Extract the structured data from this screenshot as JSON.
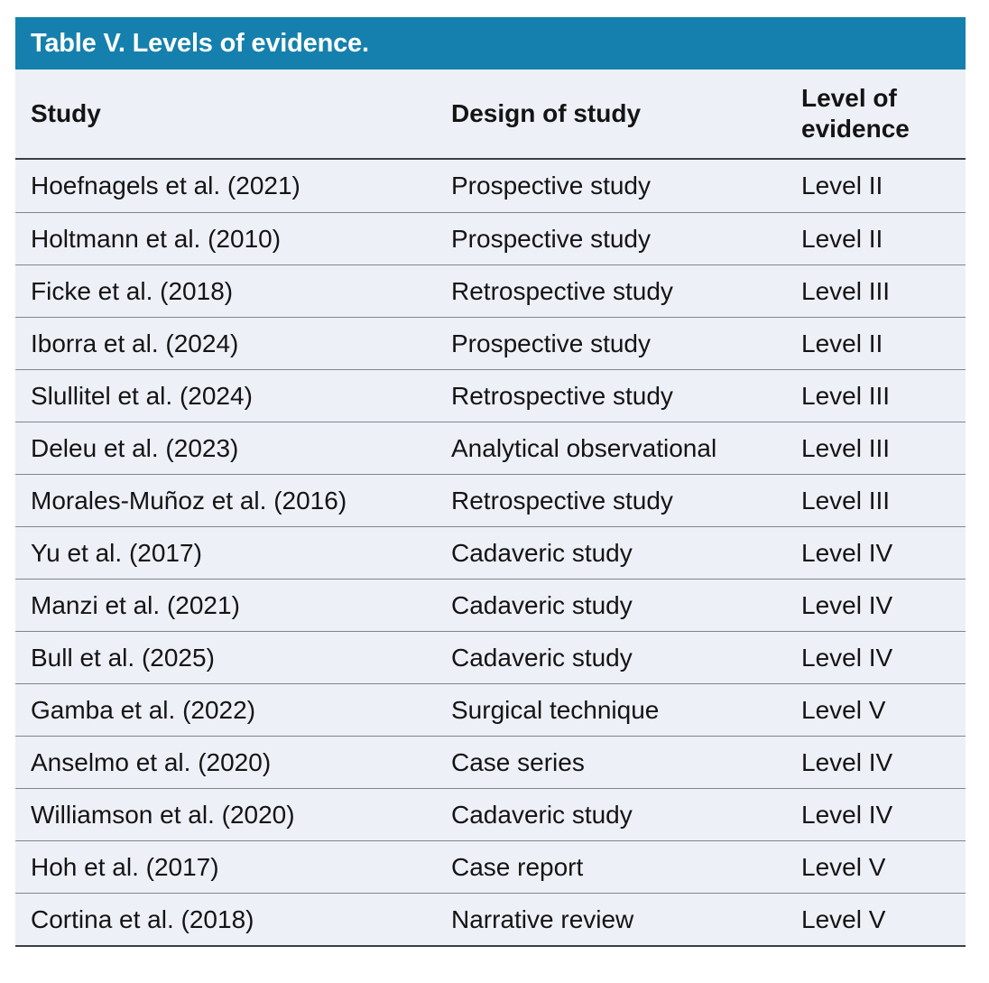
{
  "table": {
    "title": "Table V. Levels of evidence.",
    "columns": {
      "study": "Study",
      "design": "Design of study",
      "level": "Level of evidence"
    },
    "rows": [
      [
        "Hoefnagels et al. (2021)",
        "Prospective study",
        "Level II"
      ],
      [
        "Holtmann et al. (2010)",
        "Prospective study",
        "Level II"
      ],
      [
        "Ficke et al. (2018)",
        "Retrospective study",
        "Level III"
      ],
      [
        "Iborra et al. (2024)",
        "Prospective study",
        "Level II"
      ],
      [
        "Slullitel et al. (2024)",
        "Retrospective study",
        "Level III"
      ],
      [
        "Deleu et al. (2023)",
        "Analytical observational",
        "Level III"
      ],
      [
        "Morales-Muñoz et al. (2016)",
        "Retrospective study",
        "Level III"
      ],
      [
        "Yu et al. (2017)",
        "Cadaveric study",
        "Level IV"
      ],
      [
        "Manzi et al. (2021)",
        "Cadaveric study",
        "Level IV"
      ],
      [
        "Bull et al. (2025)",
        "Cadaveric study",
        "Level IV"
      ],
      [
        "Gamba et al. (2022)",
        "Surgical technique",
        "Level V"
      ],
      [
        "Anselmo et al. (2020)",
        "Case series",
        "Level IV"
      ],
      [
        "Williamson et al. (2020)",
        "Cadaveric study",
        "Level IV"
      ],
      [
        "Hoh et al. (2017)",
        "Case report",
        "Level V"
      ],
      [
        "Cortina et al. (2018)",
        "Narrative review",
        "Level V"
      ]
    ],
    "colors": {
      "title_bar_bg": "#1580AD",
      "title_text": "#FFFFFF",
      "row_bg": "#EDF0F7",
      "rule_dark": "#3C3F45",
      "rule_light": "#80858D",
      "body_text": "#141414"
    }
  }
}
